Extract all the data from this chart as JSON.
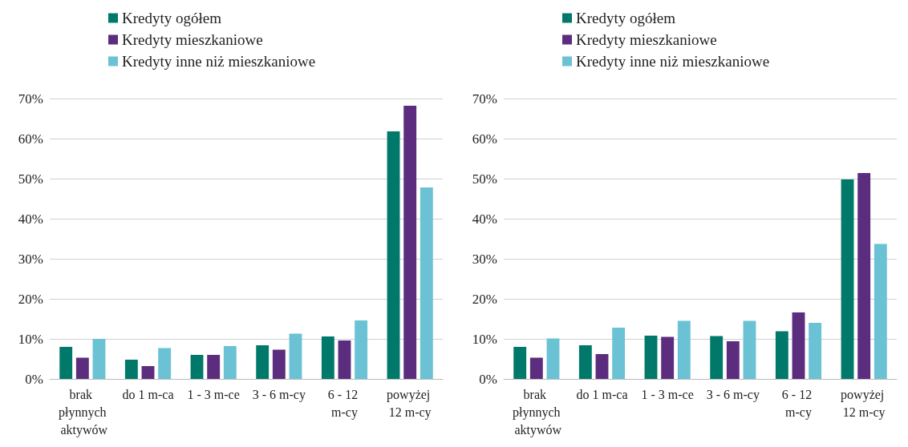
{
  "chart_data": [
    {
      "type": "bar",
      "categories": [
        "brak płynnych aktywów",
        "do 1 m-ca",
        "1 - 3 m-ce",
        "3 - 6 m-cy",
        "6 - 12 m-cy",
        "powyżej 12 m-cy"
      ],
      "series": [
        {
          "name": "Kredyty ogółem",
          "color": "#00796b",
          "values": [
            8.0,
            4.8,
            6.0,
            8.4,
            10.6,
            61.8
          ]
        },
        {
          "name": "Kredyty mieszkaniowe",
          "color": "#5c2d7f",
          "values": [
            5.3,
            3.2,
            6.0,
            7.3,
            9.6,
            68.2
          ]
        },
        {
          "name": "Kredyty inne niż mieszkaniowe",
          "color": "#6bc2d4",
          "values": [
            10.0,
            7.7,
            8.2,
            11.3,
            14.6,
            47.8
          ]
        }
      ],
      "ylim": [
        0,
        70
      ],
      "yticks": [
        {
          "value": 0,
          "label": "0%"
        },
        {
          "value": 10,
          "label": "10%"
        },
        {
          "value": 20,
          "label": "20%"
        },
        {
          "value": 30,
          "label": "30%"
        },
        {
          "value": 40,
          "label": "40%"
        },
        {
          "value": 50,
          "label": "50%"
        },
        {
          "value": 60,
          "label": "60%"
        },
        {
          "value": 70,
          "label": "70%"
        }
      ],
      "grid": "y",
      "legend": "top"
    },
    {
      "type": "bar",
      "categories": [
        "brak płynnych aktywów",
        "do 1 m-ca",
        "1 - 3 m-ce",
        "3 - 6 m-cy",
        "6 - 12 m-cy",
        "powyżej 12 m-cy"
      ],
      "series": [
        {
          "name": "Kredyty ogółem",
          "color": "#00796b",
          "values": [
            8.0,
            8.4,
            10.8,
            10.7,
            11.9,
            49.8
          ]
        },
        {
          "name": "Kredyty mieszkaniowe",
          "color": "#5c2d7f",
          "values": [
            5.3,
            6.2,
            10.5,
            9.4,
            16.6,
            51.4
          ]
        },
        {
          "name": "Kredyty inne niż mieszkaniowe",
          "color": "#6bc2d4",
          "values": [
            10.1,
            12.8,
            14.5,
            14.5,
            14.0,
            33.7
          ]
        }
      ],
      "ylim": [
        0,
        70
      ],
      "yticks": [
        {
          "value": 0,
          "label": "0%"
        },
        {
          "value": 10,
          "label": "10%"
        },
        {
          "value": 20,
          "label": "20%"
        },
        {
          "value": 30,
          "label": "30%"
        },
        {
          "value": 40,
          "label": "40%"
        },
        {
          "value": 50,
          "label": "50%"
        },
        {
          "value": 60,
          "label": "60%"
        },
        {
          "value": 70,
          "label": "70%"
        }
      ],
      "grid": "y",
      "legend": "top"
    }
  ]
}
